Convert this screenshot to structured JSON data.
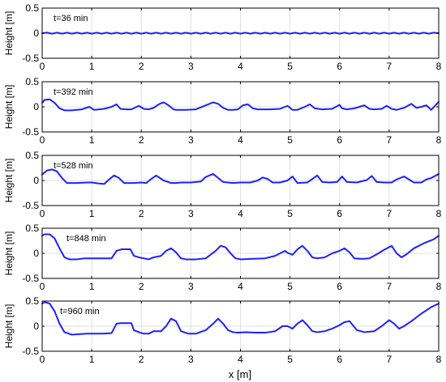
{
  "figure": {
    "xlabel": "x [m]",
    "ylabel": "Height [m]",
    "line_color": "#1f1fff",
    "grid_color": "#d9d9d9"
  },
  "chart_data": [
    {
      "type": "line",
      "annotation": "t=36 min",
      "xlabel": "",
      "ylabel": "Height [m]",
      "xlim": [
        0,
        8
      ],
      "ylim": [
        -0.5,
        0.5
      ],
      "xticks": [
        0,
        1,
        2,
        3,
        4,
        5,
        6,
        7,
        8
      ],
      "yticks": [
        -0.5,
        0,
        0.5
      ],
      "ytick_labels": [
        "-0.5",
        "0",
        "0.5"
      ],
      "grid": true,
      "series": [
        {
          "x": [
            0,
            0.1,
            0.2,
            0.3,
            0.4,
            0.5,
            0.6,
            0.7,
            0.8,
            0.9,
            1.0,
            1.1,
            1.2,
            1.3,
            1.4,
            1.5,
            1.6,
            1.7,
            1.8,
            1.9,
            2.0,
            2.1,
            2.2,
            2.3,
            2.4,
            2.5,
            2.6,
            2.7,
            2.8,
            2.9,
            3.0,
            3.1,
            3.2,
            3.3,
            3.4,
            3.5,
            3.6,
            3.7,
            3.8,
            3.9,
            4.0,
            4.1,
            4.2,
            4.3,
            4.4,
            4.5,
            4.6,
            4.7,
            4.8,
            4.9,
            5.0,
            5.1,
            5.2,
            5.3,
            5.4,
            5.5,
            5.6,
            5.7,
            5.8,
            5.9,
            6.0,
            6.1,
            6.2,
            6.3,
            6.4,
            6.5,
            6.6,
            6.7,
            6.8,
            6.9,
            7.0,
            7.1,
            7.2,
            7.3,
            7.4,
            7.5,
            7.6,
            7.7,
            7.8,
            7.9,
            8.0
          ],
          "y": [
            0,
            0.01,
            -0.01,
            0.01,
            -0.01,
            0.01,
            -0.01,
            0.01,
            -0.01,
            0.01,
            -0.01,
            0.01,
            -0.01,
            0.01,
            -0.01,
            0.01,
            -0.01,
            0.01,
            -0.01,
            0.01,
            -0.01,
            0.01,
            -0.01,
            0.01,
            -0.01,
            0.01,
            -0.01,
            0.01,
            -0.01,
            0.01,
            -0.01,
            0.01,
            -0.01,
            0.01,
            -0.01,
            0.01,
            -0.01,
            0.01,
            -0.01,
            0.01,
            -0.01,
            0.01,
            -0.01,
            0.01,
            -0.01,
            0.01,
            -0.01,
            0.01,
            -0.01,
            0.01,
            -0.01,
            0.01,
            -0.01,
            0.01,
            -0.01,
            0.01,
            -0.01,
            0.01,
            -0.01,
            0.01,
            -0.01,
            0.01,
            -0.01,
            0.01,
            -0.01,
            0.01,
            -0.01,
            0.01,
            -0.01,
            0.01,
            -0.01,
            0.01,
            -0.01,
            0.01,
            -0.01,
            0.01,
            -0.01,
            0.01,
            -0.01,
            0.01,
            0
          ]
        }
      ]
    },
    {
      "type": "line",
      "annotation": "t=392 min",
      "xlabel": "",
      "ylabel": "Height [m]",
      "xlim": [
        0,
        8
      ],
      "ylim": [
        -0.5,
        0.5
      ],
      "xticks": [
        0,
        1,
        2,
        3,
        4,
        5,
        6,
        7,
        8
      ],
      "yticks": [
        -0.5,
        0,
        0.5
      ],
      "ytick_labels": [
        "-0.5",
        "0",
        "0.5"
      ],
      "grid": true,
      "series": [
        {
          "x": [
            0,
            0.05,
            0.15,
            0.25,
            0.35,
            0.45,
            0.6,
            0.8,
            0.95,
            1.05,
            1.15,
            1.25,
            1.4,
            1.5,
            1.58,
            1.7,
            1.8,
            1.95,
            2.05,
            2.15,
            2.25,
            2.35,
            2.45,
            2.55,
            2.65,
            2.7,
            2.8,
            2.9,
            3.1,
            3.3,
            3.45,
            3.55,
            3.65,
            3.75,
            3.85,
            3.95,
            4.05,
            4.15,
            4.25,
            4.35,
            4.45,
            4.6,
            4.8,
            4.95,
            5.05,
            5.15,
            5.3,
            5.4,
            5.5,
            5.65,
            5.85,
            6.0,
            6.05,
            6.15,
            6.3,
            6.5,
            6.6,
            6.7,
            6.85,
            6.95,
            7.05,
            7.15,
            7.3,
            7.45,
            7.55,
            7.65,
            7.75,
            7.85,
            8.0
          ],
          "y": [
            0.08,
            0.14,
            0.15,
            0.08,
            -0.03,
            -0.07,
            -0.07,
            -0.05,
            0.0,
            -0.06,
            -0.05,
            -0.04,
            0.0,
            0.05,
            -0.04,
            -0.05,
            -0.05,
            0.02,
            -0.04,
            -0.05,
            -0.02,
            0.05,
            0.09,
            0.03,
            -0.05,
            -0.06,
            -0.06,
            -0.06,
            -0.05,
            0.03,
            0.09,
            0.06,
            -0.02,
            -0.06,
            -0.06,
            -0.05,
            0.03,
            0.05,
            -0.03,
            -0.05,
            -0.05,
            -0.05,
            -0.04,
            0.02,
            -0.06,
            -0.06,
            0.0,
            0.05,
            -0.03,
            -0.05,
            -0.04,
            0.04,
            -0.03,
            -0.05,
            -0.03,
            0.03,
            -0.04,
            -0.05,
            -0.04,
            0.02,
            -0.04,
            -0.06,
            -0.02,
            0.06,
            -0.02,
            0.0,
            0.03,
            -0.06,
            0.1
          ]
        }
      ]
    },
    {
      "type": "line",
      "annotation": "t=528 min",
      "xlabel": "",
      "ylabel": "Height [m]",
      "xlim": [
        0,
        8
      ],
      "ylim": [
        -0.5,
        0.5
      ],
      "xticks": [
        0,
        1,
        2,
        3,
        4,
        5,
        6,
        7,
        8
      ],
      "yticks": [
        -0.5,
        0,
        0.5
      ],
      "ytick_labels": [
        "-0.5",
        "0",
        "0.5"
      ],
      "grid": true,
      "series": [
        {
          "x": [
            0,
            0.1,
            0.2,
            0.3,
            0.4,
            0.5,
            0.7,
            0.9,
            1.0,
            1.15,
            1.25,
            1.35,
            1.45,
            1.55,
            1.65,
            1.75,
            1.85,
            2.0,
            2.1,
            2.2,
            2.3,
            2.45,
            2.6,
            2.7,
            2.8,
            3.0,
            3.2,
            3.3,
            3.45,
            3.55,
            3.65,
            3.75,
            3.85,
            4.0,
            4.2,
            4.35,
            4.45,
            4.55,
            4.65,
            4.8,
            4.95,
            5.05,
            5.15,
            5.35,
            5.45,
            5.55,
            5.65,
            5.8,
            5.95,
            6.05,
            6.15,
            6.35,
            6.55,
            6.65,
            6.75,
            6.9,
            7.05,
            7.15,
            7.3,
            7.5,
            7.65,
            7.75,
            7.85,
            8.0
          ],
          "y": [
            0.12,
            0.2,
            0.22,
            0.18,
            0.05,
            -0.05,
            -0.05,
            -0.04,
            -0.04,
            -0.06,
            -0.07,
            0.02,
            0.1,
            0.05,
            -0.05,
            -0.05,
            -0.05,
            -0.04,
            -0.05,
            0.03,
            0.1,
            0.0,
            -0.05,
            -0.05,
            -0.04,
            -0.04,
            -0.02,
            0.07,
            0.13,
            0.05,
            -0.03,
            -0.04,
            -0.05,
            -0.04,
            -0.04,
            0.0,
            0.06,
            0.03,
            -0.04,
            -0.04,
            0.0,
            0.08,
            -0.05,
            -0.04,
            0.03,
            0.1,
            -0.03,
            -0.04,
            -0.03,
            0.08,
            -0.03,
            -0.04,
            0.01,
            0.09,
            -0.03,
            -0.04,
            -0.04,
            0.02,
            0.08,
            -0.04,
            -0.04,
            0.02,
            0.05,
            0.13
          ]
        }
      ]
    },
    {
      "type": "line",
      "annotation": "t=848 min",
      "xlabel": "",
      "ylabel": "Height [m]",
      "xlim": [
        0,
        8
      ],
      "ylim": [
        -0.5,
        0.5
      ],
      "xticks": [
        0,
        1,
        2,
        3,
        4,
        5,
        6,
        7,
        8
      ],
      "yticks": [
        -0.5,
        0,
        0.5
      ],
      "ytick_labels": [
        "-0.5",
        "0",
        "0.5"
      ],
      "grid": true,
      "series": [
        {
          "x": [
            0,
            0.05,
            0.15,
            0.25,
            0.35,
            0.45,
            0.55,
            0.7,
            0.85,
            1.0,
            1.2,
            1.4,
            1.5,
            1.6,
            1.7,
            1.78,
            1.85,
            1.95,
            2.05,
            2.15,
            2.25,
            2.4,
            2.5,
            2.6,
            2.7,
            2.8,
            2.9,
            3.1,
            3.3,
            3.5,
            3.6,
            3.7,
            3.8,
            3.9,
            4.0,
            4.2,
            4.5,
            4.7,
            4.8,
            4.9,
            4.95,
            5.05,
            5.15,
            5.25,
            5.35,
            5.45,
            5.55,
            5.7,
            5.85,
            6.0,
            6.1,
            6.2,
            6.3,
            6.45,
            6.6,
            6.75,
            6.9,
            7.05,
            7.15,
            7.25,
            7.35,
            7.5,
            7.7,
            7.9,
            8.0
          ],
          "y": [
            0.35,
            0.38,
            0.38,
            0.3,
            0.1,
            -0.08,
            -0.12,
            -0.12,
            -0.1,
            -0.1,
            -0.1,
            -0.1,
            0.05,
            0.08,
            0.08,
            0.08,
            -0.05,
            -0.08,
            -0.1,
            -0.12,
            -0.08,
            -0.05,
            0.05,
            0.1,
            0.02,
            -0.1,
            -0.12,
            -0.12,
            -0.1,
            0.05,
            0.15,
            0.12,
            0.0,
            -0.1,
            -0.12,
            -0.11,
            -0.1,
            -0.05,
            0.0,
            0.05,
            0.01,
            -0.03,
            0.08,
            0.15,
            0.05,
            -0.08,
            -0.1,
            -0.08,
            0.0,
            0.05,
            0.1,
            0.02,
            -0.1,
            -0.11,
            -0.1,
            -0.02,
            0.07,
            0.15,
            0.0,
            -0.08,
            -0.02,
            0.1,
            0.2,
            0.28,
            0.35
          ]
        }
      ]
    },
    {
      "type": "line",
      "annotation": "t=960 min",
      "xlabel": "x [m]",
      "ylabel": "Height [m]",
      "xlim": [
        0,
        8
      ],
      "ylim": [
        -0.5,
        0.5
      ],
      "xticks": [
        0,
        1,
        2,
        3,
        4,
        5,
        6,
        7,
        8
      ],
      "yticks": [
        -0.5,
        0,
        0.5
      ],
      "ytick_labels": [
        "-0.5",
        "0",
        "0.5"
      ],
      "grid": true,
      "series": [
        {
          "x": [
            0,
            0.05,
            0.15,
            0.25,
            0.35,
            0.45,
            0.6,
            0.75,
            0.9,
            1.0,
            1.2,
            1.4,
            1.5,
            1.6,
            1.7,
            1.8,
            1.85,
            1.95,
            2.05,
            2.15,
            2.25,
            2.4,
            2.5,
            2.6,
            2.7,
            2.8,
            2.95,
            3.1,
            3.3,
            3.45,
            3.55,
            3.65,
            3.75,
            3.85,
            3.95,
            4.1,
            4.3,
            4.5,
            4.7,
            4.85,
            4.95,
            5.05,
            5.15,
            5.25,
            5.35,
            5.45,
            5.55,
            5.7,
            5.85,
            6.0,
            6.1,
            6.2,
            6.35,
            6.5,
            6.7,
            6.85,
            7.0,
            7.1,
            7.2,
            7.3,
            7.45,
            7.65,
            7.85,
            8.0
          ],
          "y": [
            0.45,
            0.48,
            0.45,
            0.3,
            0.05,
            -0.12,
            -0.17,
            -0.16,
            -0.15,
            -0.15,
            -0.15,
            -0.14,
            0.05,
            0.06,
            0.06,
            0.06,
            -0.08,
            -0.12,
            -0.15,
            -0.15,
            -0.1,
            -0.1,
            0.0,
            0.15,
            0.1,
            -0.1,
            -0.15,
            -0.15,
            -0.08,
            0.05,
            0.15,
            0.05,
            -0.08,
            -0.12,
            -0.13,
            -0.12,
            -0.13,
            -0.13,
            -0.1,
            0.0,
            0.0,
            -0.05,
            0.05,
            0.12,
            0.02,
            -0.1,
            -0.12,
            -0.1,
            -0.05,
            0.02,
            0.08,
            0.1,
            -0.08,
            -0.12,
            -0.1,
            0.0,
            0.12,
            0.05,
            -0.05,
            0.0,
            0.1,
            0.25,
            0.38,
            0.45
          ]
        }
      ]
    }
  ]
}
